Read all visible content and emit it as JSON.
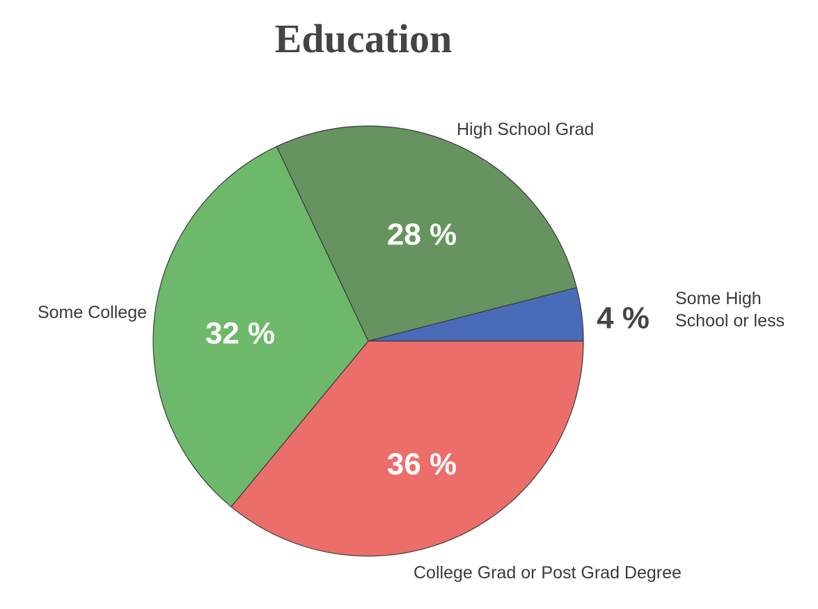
{
  "chart_data": {
    "type": "pie",
    "title": "Education",
    "slices": [
      {
        "category": "Some High School or less",
        "category_lines": [
          "Some High",
          "School or less"
        ],
        "value": 4,
        "label": "4 %",
        "color": "#4a6bb8"
      },
      {
        "category": "College Grad or Post Grad Degree",
        "category_lines": [
          "College Grad or Post Grad Degree"
        ],
        "value": 36,
        "label": "36 %",
        "color": "#ec6e6a"
      },
      {
        "category": "Some College",
        "category_lines": [
          "Some College"
        ],
        "value": 32,
        "label": "32 %",
        "color": "#6db86a"
      },
      {
        "category": "High School Grad",
        "category_lines": [
          "High School Grad"
        ],
        "value": 28,
        "label": "28 %",
        "color": "#66935f"
      }
    ],
    "value_label_colors": {
      "inside": "#ffffff",
      "outside": "#444444"
    }
  }
}
